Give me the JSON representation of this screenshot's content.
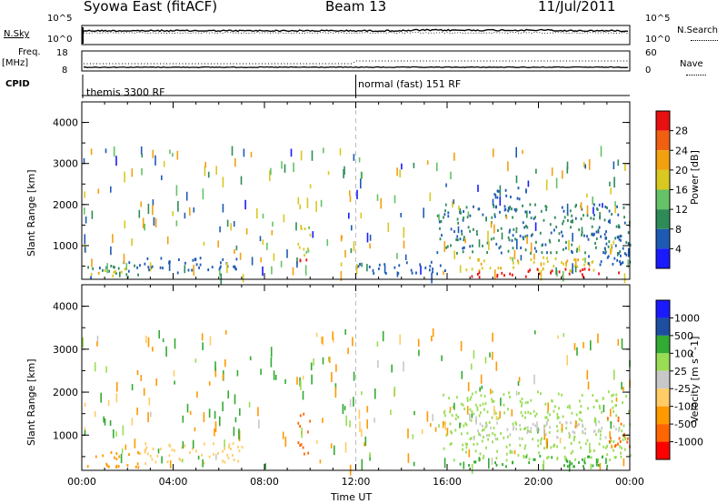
{
  "header": {
    "station": "Syowa East (fitACF)",
    "beam": "Beam 13",
    "date": "11/Jul/2011"
  },
  "summary": {
    "nsky_label": "N.Sky",
    "nsearch_label": "N.Search",
    "nsky_ticks": [
      "10^5",
      "10^0"
    ],
    "nsearch_ticks": [
      "10^5",
      "10^0"
    ],
    "freq_label": "Freq.",
    "freq_unit": "[MHz]",
    "freq_ticks": [
      "18",
      "8"
    ],
    "nave_label": "Nave",
    "nave_ticks": [
      "60",
      "0"
    ],
    "cpid_label": "CPID",
    "cpid_segments": [
      {
        "label": "themis 3300 RF",
        "start": "00:00"
      },
      {
        "label": "normal (fast) 151 RF",
        "start": "12:00"
      }
    ]
  },
  "colors": {
    "power_scale": [
      "#1a1aff",
      "#1e5ab4",
      "#2e8b57",
      "#66c266",
      "#d8c820",
      "#f2a010",
      "#f06010",
      "#e81010"
    ],
    "velocity_scale": [
      "#ff0000",
      "#ff6600",
      "#ff9900",
      "#ffcc66",
      "#c8c8c8",
      "#99dd55",
      "#33aa33",
      "#1e4ea0",
      "#1a1aff"
    ]
  },
  "chart_data": [
    {
      "type": "heatmap",
      "panel": "power",
      "ylabel": "Slant Range [km]",
      "xlabel": "Time UT",
      "xlim": [
        "00:00",
        "24:00"
      ],
      "ylim": [
        180,
        4500
      ],
      "yticks": [
        "1000",
        "2000",
        "3000",
        "4000"
      ],
      "xticks": [
        "00:00",
        "04:00",
        "08:00",
        "12:00",
        "16:00",
        "20:00",
        "00:00"
      ],
      "colorbar": {
        "label": "Power [dB]",
        "ticks": [
          "4",
          "8",
          "12",
          "16",
          "20",
          "24",
          "28"
        ],
        "range": [
          0,
          30
        ]
      },
      "regions": [
        {
          "t": [
            0.1,
            2.5
          ],
          "r": [
            200,
            600
          ],
          "v": 8
        },
        {
          "t": [
            0.3,
            2.0
          ],
          "r": [
            250,
            450
          ],
          "v": 18
        },
        {
          "t": [
            2.5,
            7.0
          ],
          "r": [
            300,
            700
          ],
          "v": 6
        },
        {
          "t": [
            9.4,
            10.0
          ],
          "r": [
            500,
            1500
          ],
          "v": 16
        },
        {
          "t": [
            9.5,
            9.9
          ],
          "r": [
            600,
            900
          ],
          "v": 28
        },
        {
          "t": [
            12.0,
            16.0
          ],
          "r": [
            300,
            600
          ],
          "v": 6
        },
        {
          "t": [
            15.5,
            24.0
          ],
          "r": [
            800,
            2000
          ],
          "v": 8
        },
        {
          "t": [
            16.8,
            23.0
          ],
          "r": [
            350,
            700
          ],
          "v": 18
        },
        {
          "t": [
            17.0,
            23.5
          ],
          "r": [
            220,
            420
          ],
          "v": 28
        },
        {
          "t": [
            18.0,
            19.5
          ],
          "r": [
            1800,
            2400
          ],
          "v": 6
        },
        {
          "t": [
            22.0,
            24.0
          ],
          "r": [
            500,
            1300
          ],
          "v": 6
        }
      ]
    },
    {
      "type": "heatmap",
      "panel": "velocity",
      "ylabel": "Slant Range [km]",
      "xlabel": "Time UT",
      "xlim": [
        "00:00",
        "24:00"
      ],
      "ylim": [
        180,
        4500
      ],
      "yticks": [
        "1000",
        "2000",
        "3000",
        "4000"
      ],
      "xticks": [
        "00:00",
        "04:00",
        "08:00",
        "12:00",
        "16:00",
        "20:00",
        "00:00"
      ],
      "colorbar": {
        "label": "Velocity [m s^-1]",
        "ticks": [
          "-1000",
          "-500",
          "-100",
          "-25",
          "25",
          "100",
          "500",
          "1000"
        ]
      },
      "regions": [
        {
          "t": [
            0.1,
            2.5
          ],
          "r": [
            200,
            600
          ],
          "v": -100
        },
        {
          "t": [
            2.5,
            7.0
          ],
          "r": [
            300,
            800
          ],
          "v": -40
        },
        {
          "t": [
            9.4,
            10.0
          ],
          "r": [
            500,
            1500
          ],
          "v": -500
        },
        {
          "t": [
            15.8,
            24.0
          ],
          "r": [
            400,
            2000
          ],
          "v": 50
        },
        {
          "t": [
            17.0,
            23.5
          ],
          "r": [
            900,
            1300
          ],
          "v": 0
        },
        {
          "t": [
            16.5,
            23.0
          ],
          "r": [
            250,
            500
          ],
          "v": 200
        },
        {
          "t": [
            23.0,
            24.0
          ],
          "r": [
            700,
            1400
          ],
          "v": -500
        }
      ]
    }
  ]
}
